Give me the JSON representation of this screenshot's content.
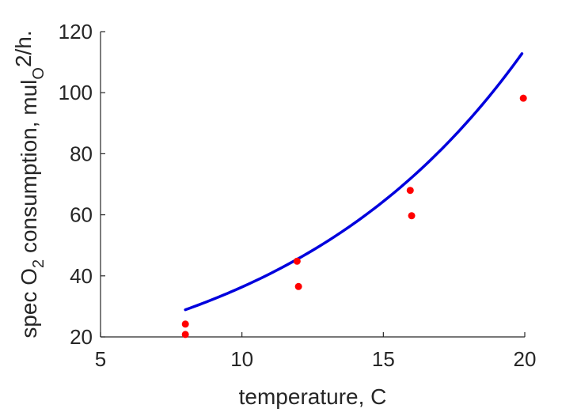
{
  "chart_data": {
    "type": "scatter",
    "xlabel": "temperature, C",
    "ylabel": {
      "part1": "spec O",
      "sub1": "2",
      "part2": " consumption, mul",
      "sub2": "O",
      "part3": "2/h."
    },
    "xlim": [
      5,
      20
    ],
    "ylim": [
      20,
      120
    ],
    "xticks": [
      "5",
      "10",
      "15",
      "20"
    ],
    "yticks": [
      "20",
      "40",
      "60",
      "80",
      "100",
      "120"
    ],
    "grid": false,
    "colors": {
      "points": "#ff0000",
      "curve": "#0000dd",
      "axis": "#262626"
    },
    "series": [
      {
        "kind": "points",
        "x": [
          8,
          8,
          11.95,
          12,
          15.95,
          16,
          19.95
        ],
        "y": [
          24.2,
          20.8,
          44.8,
          36.5,
          68.0,
          59.7,
          98.2
        ]
      },
      {
        "kind": "line",
        "model": "exponential",
        "x_range": [
          8,
          19.9
        ],
        "y_range": [
          28.9,
          112.8
        ]
      }
    ]
  }
}
